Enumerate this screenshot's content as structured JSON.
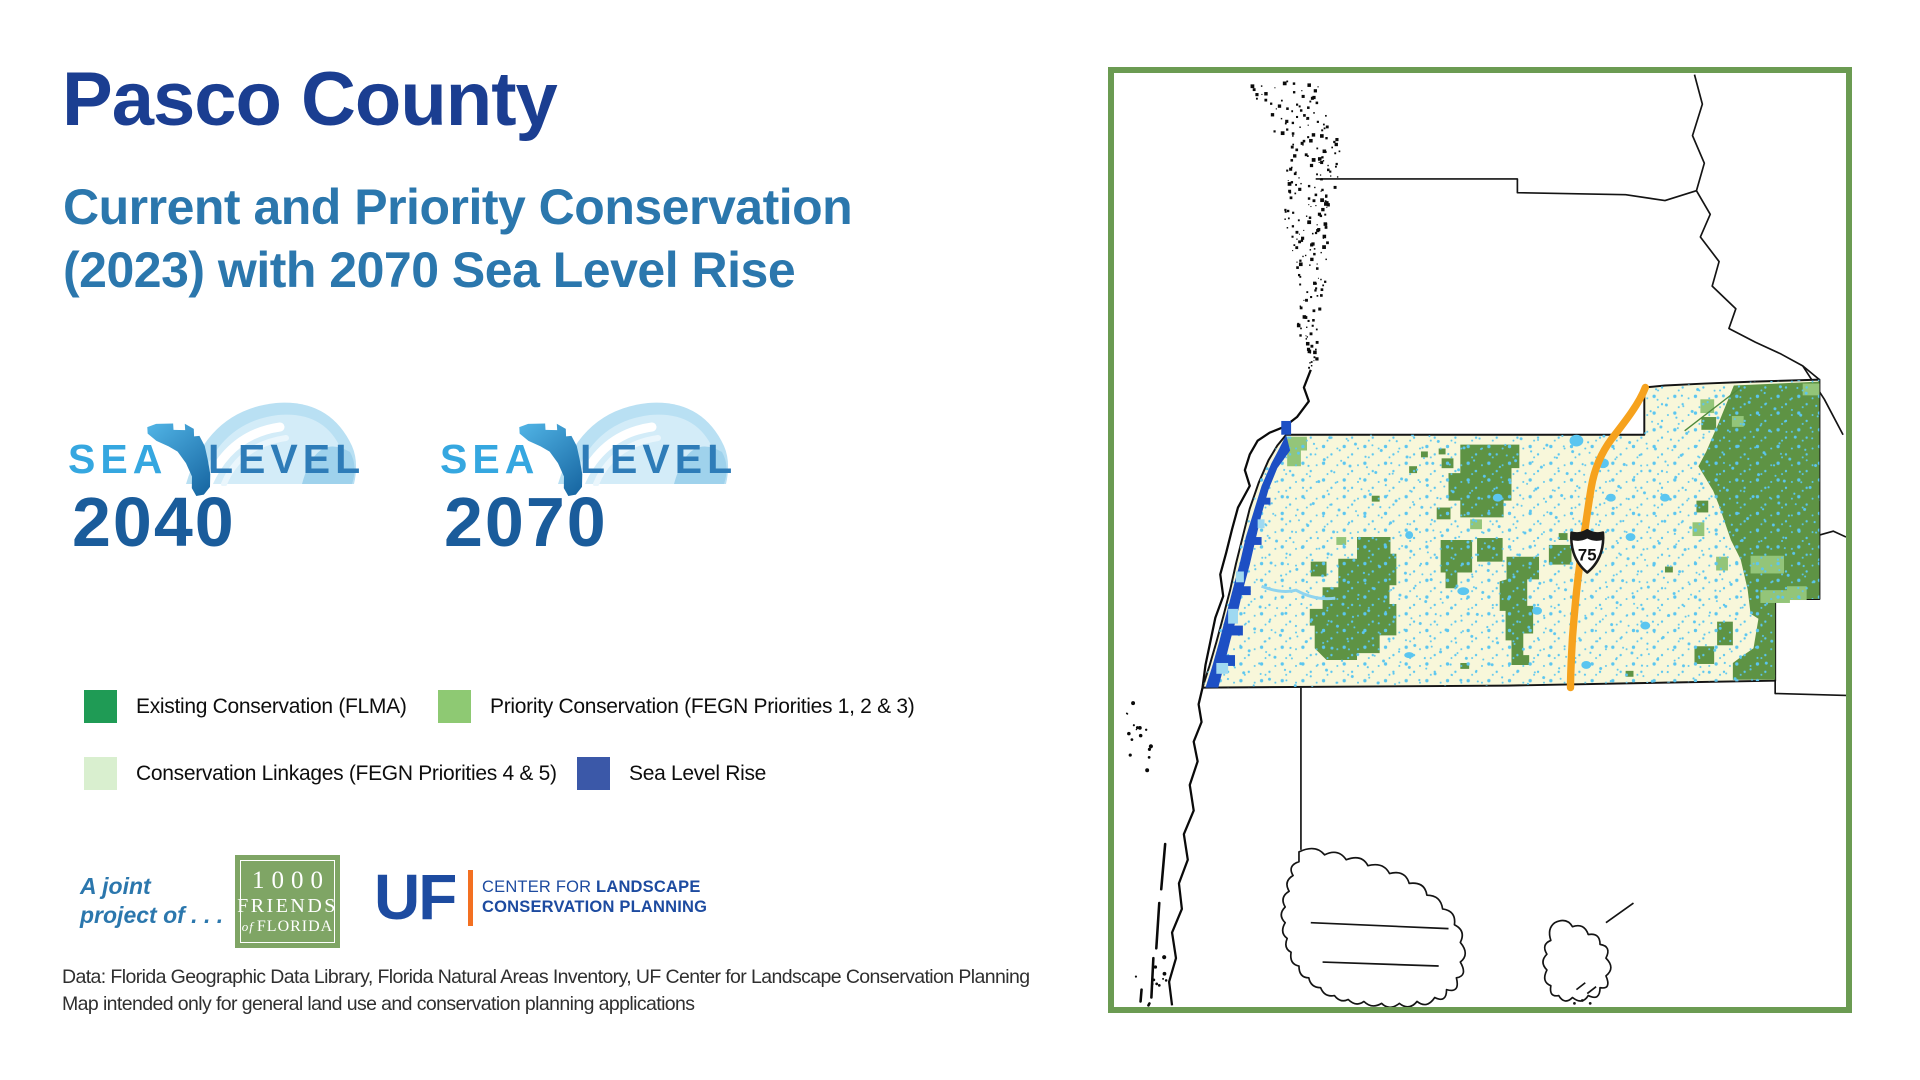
{
  "header": {
    "title": "Pasco County",
    "subtitle_line1": "Current and Priority Conservation",
    "subtitle_line2": "(2023) with 2070 Sea Level Rise"
  },
  "theme": {
    "title_color": "#1b3e91",
    "subtitle_color": "#2b77ad",
    "partner_text_color": "#2b77ad"
  },
  "logos": {
    "items": [
      {
        "word1": "SEA",
        "word2": "LEVEL",
        "year": "2040"
      },
      {
        "word1": "SEA",
        "word2": "LEVEL",
        "year": "2070"
      }
    ]
  },
  "legend": {
    "items": [
      {
        "label": "Existing Conservation (FLMA)",
        "color": "#1f9b55"
      },
      {
        "label": "Priority Conservation (FEGN Priorities 1, 2 & 3)",
        "color": "#8ec973"
      },
      {
        "label": "Conservation Linkages (FEGN Priorities 4 & 5)",
        "color": "#d9efcf"
      },
      {
        "label": "Sea Level Rise",
        "color": "#3b58a8"
      }
    ]
  },
  "partners": {
    "intro_line1": "A joint",
    "intro_line2": "project of . . .",
    "friends": {
      "line1": "1000",
      "line2": "FRIENDS",
      "line3_of": "of",
      "line3_name": "FLORIDA"
    },
    "uf": {
      "monogram": "UF",
      "line1_prefix": "CENTER FOR ",
      "line1_bold": "LANDSCAPE",
      "line2_bold": "CONSERVATION PLANNING"
    }
  },
  "footnote": {
    "line1": "Data: Florida Geographic Data Library, Florida Natural Areas Inventory, UF Center for Landscape Conservation Planning",
    "line2": "Map intended only for general land use and conservation planning applications"
  },
  "map": {
    "frame_color": "#6b9b52",
    "county_fill": "#f8f7da",
    "existing_conservation_fill": "#5e9344",
    "priority_conservation_fill": "#93c579",
    "sea_level_rise_fill": "#1d4fc4",
    "sea_level_rise_light": "#9fd9f1",
    "water_speckle_color": "#5bc6f0",
    "highway_color": "#f6a21d",
    "boundary_color": "#141414",
    "highway_shield_label": "75"
  }
}
